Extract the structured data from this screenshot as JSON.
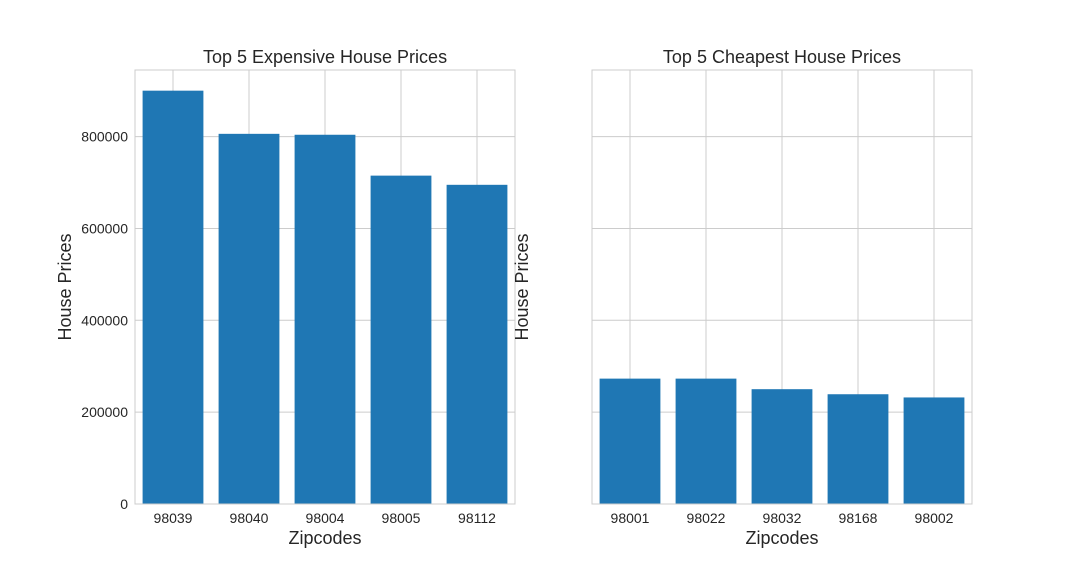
{
  "chart_data": [
    {
      "type": "bar",
      "title": "Top 5 Expensive House Prices",
      "xlabel": "Zipcodes",
      "ylabel": "House Prices",
      "categories": [
        "98039",
        "98040",
        "98004",
        "98005",
        "98112"
      ],
      "values": [
        900000,
        806000,
        804000,
        715000,
        695000
      ],
      "ylim": [
        0,
        945000
      ],
      "yticks": [
        0,
        200000,
        400000,
        600000,
        800000
      ],
      "ytick_labels": [
        "0",
        "200000",
        "400000",
        "600000",
        "800000"
      ],
      "show_ytick_labels": true,
      "grid": true,
      "color": "#1f77b4"
    },
    {
      "type": "bar",
      "title": "Top 5 Cheapest House Prices",
      "xlabel": "Zipcodes",
      "ylabel": "House Prices",
      "categories": [
        "98001",
        "98022",
        "98032",
        "98168",
        "98002"
      ],
      "values": [
        273000,
        273000,
        250000,
        239000,
        232000
      ],
      "ylim": [
        0,
        945000
      ],
      "yticks": [
        0,
        200000,
        400000,
        600000,
        800000
      ],
      "ytick_labels": [],
      "show_ytick_labels": false,
      "grid": true,
      "color": "#1f77b4"
    }
  ]
}
